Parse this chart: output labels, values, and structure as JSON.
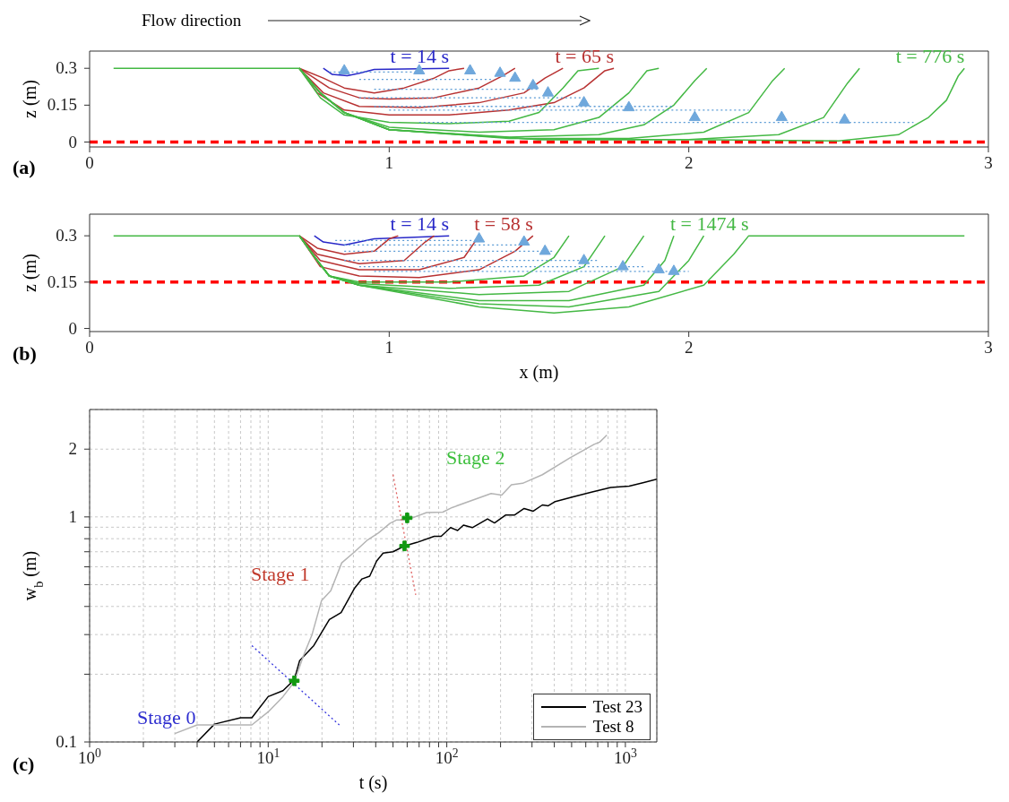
{
  "chart_data": [
    {
      "type": "line",
      "title": "(a)",
      "ylabel": "z (m)",
      "xlim": [
        0,
        3
      ],
      "xticks": [
        0,
        1,
        2,
        3
      ],
      "ylim": [
        -0.02,
        0.37
      ],
      "yticks": [
        0,
        0.15,
        0.3
      ],
      "grid": false,
      "legend": false,
      "annotations": [
        "Flow direction"
      ],
      "ref_lines": [
        {
          "axis": "y",
          "value": 0,
          "color": "#ff0000",
          "line_style": "dashed"
        }
      ],
      "series": [
        {
          "name": "t = 14 s",
          "color": "#2828c8",
          "x": [
            0.78,
            0.81,
            0.86,
            0.9,
            0.95,
            1.2
          ],
          "values": [
            0.3,
            0.275,
            0.27,
            0.28,
            0.295,
            0.3
          ]
        },
        {
          "color": "#b83232",
          "x": [
            0.7,
            0.78,
            0.85,
            0.95,
            1.05,
            1.15,
            1.2,
            1.25
          ],
          "values": [
            0.3,
            0.26,
            0.22,
            0.2,
            0.22,
            0.26,
            0.29,
            0.3
          ]
        },
        {
          "color": "#b83232",
          "x": [
            0.7,
            0.8,
            0.9,
            1.0,
            1.15,
            1.3,
            1.38,
            1.42
          ],
          "values": [
            0.3,
            0.22,
            0.18,
            0.175,
            0.18,
            0.22,
            0.27,
            0.3
          ]
        },
        {
          "color": "#b83232",
          "x": [
            0.7,
            0.78,
            0.9,
            1.1,
            1.3,
            1.45,
            1.52,
            1.58
          ],
          "values": [
            0.3,
            0.2,
            0.145,
            0.14,
            0.16,
            0.2,
            0.26,
            0.3
          ]
        },
        {
          "name": "t = 65 s",
          "color": "#b83232",
          "x": [
            0.7,
            0.76,
            0.85,
            1.0,
            1.2,
            1.4,
            1.55,
            1.65,
            1.72,
            1.75
          ],
          "values": [
            0.3,
            0.2,
            0.13,
            0.11,
            0.11,
            0.13,
            0.16,
            0.22,
            0.29,
            0.3
          ]
        },
        {
          "color": "#44b844",
          "x": [
            0.7,
            0.77,
            0.85,
            1.0,
            1.2,
            1.4,
            1.5,
            1.58,
            1.63,
            1.7
          ],
          "values": [
            0.3,
            0.18,
            0.11,
            0.08,
            0.075,
            0.085,
            0.12,
            0.22,
            0.29,
            0.3
          ]
        },
        {
          "color": "#44b844",
          "x": [
            0.7,
            0.77,
            0.85,
            1.0,
            1.3,
            1.55,
            1.7,
            1.8,
            1.86,
            1.9
          ],
          "values": [
            0.3,
            0.2,
            0.12,
            0.06,
            0.04,
            0.05,
            0.1,
            0.2,
            0.29,
            0.3
          ]
        },
        {
          "color": "#44b844",
          "x": [
            0.7,
            0.77,
            0.85,
            1.0,
            1.4,
            1.7,
            1.85,
            1.95,
            2.02,
            2.06
          ],
          "values": [
            0.3,
            0.2,
            0.12,
            0.05,
            0.02,
            0.03,
            0.07,
            0.15,
            0.25,
            0.3
          ]
        },
        {
          "color": "#44b844",
          "x": [
            0.7,
            0.77,
            0.85,
            1.0,
            1.4,
            1.8,
            2.05,
            2.2,
            2.28,
            2.32
          ],
          "values": [
            0.3,
            0.2,
            0.12,
            0.05,
            0.015,
            0.015,
            0.04,
            0.12,
            0.25,
            0.3
          ]
        },
        {
          "color": "#44b844",
          "x": [
            0.7,
            0.77,
            0.85,
            1.0,
            1.5,
            2.0,
            2.3,
            2.45,
            2.53,
            2.57
          ],
          "values": [
            0.3,
            0.2,
            0.12,
            0.05,
            0.01,
            0.01,
            0.03,
            0.1,
            0.24,
            0.3
          ]
        },
        {
          "name": "t = 776 s",
          "color": "#44b844",
          "x": [
            0.08,
            0.7,
            0.77,
            0.85,
            1.0,
            1.5,
            2.0,
            2.5,
            2.7,
            2.8,
            2.86,
            2.9,
            2.92
          ],
          "values": [
            0.3,
            0.3,
            0.2,
            0.12,
            0.05,
            0.01,
            0.01,
            0.005,
            0.03,
            0.1,
            0.17,
            0.27,
            0.3
          ]
        },
        {
          "color": "#5b9bd5",
          "line_style": "dotted",
          "x": [
            0.8,
            1.1
          ],
          "values": [
            0.285,
            0.285
          ]
        },
        {
          "color": "#5b9bd5",
          "line_style": "dotted",
          "x": [
            0.9,
            1.35
          ],
          "values": [
            0.255,
            0.255
          ]
        },
        {
          "color": "#5b9bd5",
          "line_style": "dotted",
          "x": [
            0.95,
            1.5
          ],
          "values": [
            0.215,
            0.215
          ]
        },
        {
          "color": "#5b9bd5",
          "line_style": "dotted",
          "x": [
            0.9,
            1.65
          ],
          "values": [
            0.18,
            0.18
          ]
        },
        {
          "color": "#5b9bd5",
          "line_style": "dotted",
          "x": [
            0.95,
            1.95
          ],
          "values": [
            0.145,
            0.145
          ]
        },
        {
          "color": "#5b9bd5",
          "line_style": "dotted",
          "x": [
            1.0,
            2.2
          ],
          "values": [
            0.13,
            0.13
          ]
        },
        {
          "color": "#5b9bd5",
          "line_style": "dotted",
          "x": [
            1.1,
            2.75
          ],
          "values": [
            0.08,
            0.08
          ]
        },
        {
          "type": "scatter",
          "marker": "triangle",
          "color": "#6fa8dc",
          "x": [
            0.85,
            1.1,
            1.27,
            1.37,
            1.42,
            1.48,
            1.53,
            1.65,
            1.8,
            2.02,
            2.31,
            2.52
          ],
          "values": [
            0.29,
            0.29,
            0.29,
            0.28,
            0.26,
            0.23,
            0.2,
            0.16,
            0.14,
            0.1,
            0.1,
            0.09
          ]
        }
      ]
    },
    {
      "type": "line",
      "title": "(b)",
      "xlabel": "x (m)",
      "ylabel": "z (m)",
      "xlim": [
        0,
        3
      ],
      "xticks": [
        0,
        1,
        2,
        3
      ],
      "ylim": [
        -0.01,
        0.37
      ],
      "yticks": [
        0,
        0.15,
        0.3
      ],
      "grid": false,
      "legend": false,
      "ref_lines": [
        {
          "axis": "y",
          "value": 0.15,
          "color": "#ff0000",
          "line_style": "dashed"
        }
      ],
      "series": [
        {
          "name": "t = 14 s",
          "color": "#2828c8",
          "x": [
            0.75,
            0.78,
            0.85,
            0.95,
            1.2
          ],
          "values": [
            0.3,
            0.28,
            0.27,
            0.29,
            0.3
          ]
        },
        {
          "color": "#b83232",
          "x": [
            0.7,
            0.76,
            0.85,
            0.95,
            1.0,
            1.03
          ],
          "values": [
            0.3,
            0.26,
            0.24,
            0.25,
            0.29,
            0.3
          ]
        },
        {
          "color": "#b83232",
          "x": [
            0.7,
            0.76,
            0.9,
            1.05,
            1.12,
            1.15
          ],
          "values": [
            0.3,
            0.24,
            0.21,
            0.22,
            0.28,
            0.3
          ]
        },
        {
          "color": "#b83232",
          "x": [
            0.7,
            0.77,
            0.9,
            1.1,
            1.25,
            1.3
          ],
          "values": [
            0.3,
            0.22,
            0.19,
            0.19,
            0.23,
            0.3
          ]
        },
        {
          "name": "t = 58 s",
          "color": "#b83232",
          "x": [
            0.7,
            0.77,
            0.9,
            1.1,
            1.3,
            1.42,
            1.48
          ],
          "values": [
            0.3,
            0.2,
            0.17,
            0.165,
            0.19,
            0.25,
            0.3
          ]
        },
        {
          "color": "#44b844",
          "x": [
            0.7,
            0.76,
            0.8,
            0.9,
            1.2,
            1.45,
            1.55,
            1.6
          ],
          "values": [
            0.3,
            0.22,
            0.17,
            0.15,
            0.15,
            0.17,
            0.23,
            0.3
          ]
        },
        {
          "color": "#44b844",
          "x": [
            0.7,
            0.76,
            0.8,
            0.9,
            1.2,
            1.5,
            1.65,
            1.72
          ],
          "values": [
            0.3,
            0.22,
            0.17,
            0.145,
            0.13,
            0.14,
            0.2,
            0.3
          ]
        },
        {
          "color": "#44b844",
          "x": [
            0.7,
            0.76,
            0.8,
            0.9,
            1.3,
            1.6,
            1.78,
            1.85
          ],
          "values": [
            0.3,
            0.22,
            0.17,
            0.14,
            0.11,
            0.12,
            0.2,
            0.3
          ]
        },
        {
          "color": "#44b844",
          "x": [
            0.7,
            0.76,
            0.8,
            0.9,
            1.3,
            1.6,
            1.85,
            1.92,
            1.95
          ],
          "values": [
            0.3,
            0.22,
            0.17,
            0.14,
            0.09,
            0.09,
            0.14,
            0.22,
            0.3
          ]
        },
        {
          "color": "#44b844",
          "x": [
            0.7,
            0.76,
            0.8,
            0.9,
            1.3,
            1.6,
            1.9,
            2.0,
            2.05
          ],
          "values": [
            0.3,
            0.22,
            0.17,
            0.14,
            0.08,
            0.07,
            0.12,
            0.22,
            0.3
          ]
        },
        {
          "name": "t = 1474 s",
          "color": "#44b844",
          "x": [
            0.08,
            0.7,
            0.76,
            0.8,
            0.9,
            1.3,
            1.55,
            1.8,
            2.05,
            2.15,
            2.2,
            2.92
          ],
          "values": [
            0.3,
            0.3,
            0.22,
            0.17,
            0.14,
            0.07,
            0.05,
            0.07,
            0.14,
            0.24,
            0.3,
            0.3
          ]
        },
        {
          "color": "#5b9bd5",
          "line_style": "dotted",
          "x": [
            0.82,
            1.3
          ],
          "values": [
            0.285,
            0.285
          ]
        },
        {
          "color": "#5b9bd5",
          "line_style": "dotted",
          "x": [
            0.85,
            1.45
          ],
          "values": [
            0.27,
            0.27
          ]
        },
        {
          "color": "#5b9bd5",
          "line_style": "dotted",
          "x": [
            0.85,
            1.55
          ],
          "values": [
            0.25,
            0.25
          ]
        },
        {
          "color": "#5b9bd5",
          "line_style": "dotted",
          "x": [
            0.85,
            1.7
          ],
          "values": [
            0.22,
            0.22
          ]
        },
        {
          "color": "#5b9bd5",
          "line_style": "dotted",
          "x": [
            0.9,
            1.85
          ],
          "values": [
            0.2,
            0.2
          ]
        },
        {
          "color": "#5b9bd5",
          "line_style": "dotted",
          "x": [
            0.95,
            2.0
          ],
          "values": [
            0.185,
            0.185
          ]
        },
        {
          "type": "scatter",
          "marker": "triangle",
          "color": "#6fa8dc",
          "x": [
            1.3,
            1.45,
            1.52,
            1.65,
            1.78,
            1.9,
            1.95
          ],
          "values": [
            0.29,
            0.28,
            0.25,
            0.22,
            0.2,
            0.19,
            0.185
          ]
        }
      ]
    },
    {
      "type": "line",
      "title": "(c)",
      "xlabel": "t (s)",
      "ylabel": "w$_{b}$ (m)",
      "log": "xy",
      "xlim": [
        1,
        1500
      ],
      "ylim": [
        0.1,
        3
      ],
      "grid": true,
      "legend": "bottom right",
      "xticks": [
        {
          "value": 1,
          "label": "10$^{0}$"
        },
        {
          "value": 2,
          "label": null
        },
        {
          "value": 3,
          "label": null
        },
        {
          "value": 4,
          "label": null
        },
        {
          "value": 5,
          "label": null
        },
        {
          "value": 6,
          "label": null
        },
        {
          "value": 7,
          "label": null
        },
        {
          "value": 8,
          "label": null
        },
        {
          "value": 9,
          "label": null
        },
        {
          "value": 10,
          "label": "10$^{1}$"
        },
        {
          "value": 20,
          "label": null
        },
        {
          "value": 30,
          "label": null
        },
        {
          "value": 40,
          "label": null
        },
        {
          "value": 50,
          "label": null
        },
        {
          "value": 60,
          "label": null
        },
        {
          "value": 70,
          "label": null
        },
        {
          "value": 80,
          "label": null
        },
        {
          "value": 90,
          "label": null
        },
        {
          "value": 100,
          "label": "10$^{2}$"
        },
        {
          "value": 200,
          "label": null
        },
        {
          "value": 300,
          "label": null
        },
        {
          "value": 400,
          "label": null
        },
        {
          "value": 500,
          "label": null
        },
        {
          "value": 600,
          "label": null
        },
        {
          "value": 700,
          "label": null
        },
        {
          "value": 800,
          "label": null
        },
        {
          "value": 900,
          "label": null
        },
        {
          "value": 1000,
          "label": "10$^{3}$"
        }
      ],
      "yticks": [
        0.1,
        {
          "value": 0.2,
          "label": null
        },
        {
          "value": 0.3,
          "label": null
        },
        {
          "value": 0.4,
          "label": null
        },
        {
          "value": 0.5,
          "label": null
        },
        {
          "value": 0.6,
          "label": null
        },
        {
          "value": 0.7,
          "label": null
        },
        {
          "value": 0.8,
          "label": null
        },
        {
          "value": 0.9,
          "label": null
        },
        1,
        2
      ],
      "annotations": [
        "Stage 0",
        "Stage 1",
        "Stage 2"
      ],
      "series": [
        {
          "name": "Test 23",
          "color": "#000000",
          "x": [
            4.0,
            5.0,
            7.0,
            8.1,
            10,
            12.1,
            14,
            15,
            18,
            22,
            25.6,
            30.5,
            33.5,
            37,
            40.5,
            44,
            50,
            58,
            68,
            85,
            93,
            105,
            115,
            124,
            139,
            169,
            185,
            214,
            240,
            271,
            305,
            343,
            370,
            405,
            514,
            652,
            828,
            1050,
            1268,
            1500
          ],
          "values": [
            0.1,
            0.12,
            0.128,
            0.128,
            0.159,
            0.169,
            0.189,
            0.23,
            0.268,
            0.35,
            0.376,
            0.483,
            0.53,
            0.545,
            0.637,
            0.69,
            0.7,
            0.743,
            0.77,
            0.82,
            0.82,
            0.896,
            0.87,
            0.92,
            0.896,
            0.98,
            0.94,
            1.02,
            1.02,
            1.09,
            1.06,
            1.13,
            1.12,
            1.17,
            1.23,
            1.29,
            1.35,
            1.37,
            1.42,
            1.47
          ]
        },
        {
          "name": "Test 8",
          "color": "#b4b4b4",
          "x": [
            3.0,
            4.0,
            8.1,
            10,
            12.1,
            14,
            15.7,
            17.6,
            19.9,
            22.4,
            25.8,
            30.5,
            36,
            41.5,
            48,
            52.5,
            60,
            77,
            95,
            107,
            177,
            203,
            230,
            266,
            343,
            490,
            668,
            718,
            788
          ],
          "values": [
            0.109,
            0.119,
            0.119,
            0.136,
            0.159,
            0.185,
            0.24,
            0.3,
            0.425,
            0.47,
            0.625,
            0.7,
            0.79,
            0.85,
            0.936,
            0.97,
            0.97,
            1.045,
            1.05,
            1.1,
            1.27,
            1.25,
            1.39,
            1.41,
            1.54,
            1.83,
            2.1,
            2.15,
            2.31
          ]
        },
        {
          "color": "#3333dd",
          "line_style": "dotted",
          "x": [
            8.1,
            25
          ],
          "values": [
            0.268,
            0.119
          ]
        },
        {
          "color": "#e06060",
          "line_style": "dotted",
          "x": [
            50,
            67
          ],
          "values": [
            1.54,
            0.45
          ]
        },
        {
          "type": "scatter",
          "marker": "cross",
          "color": "#119911",
          "x": [
            14,
            60,
            58
          ],
          "values": [
            0.187,
            0.99,
            0.743
          ]
        }
      ]
    }
  ]
}
